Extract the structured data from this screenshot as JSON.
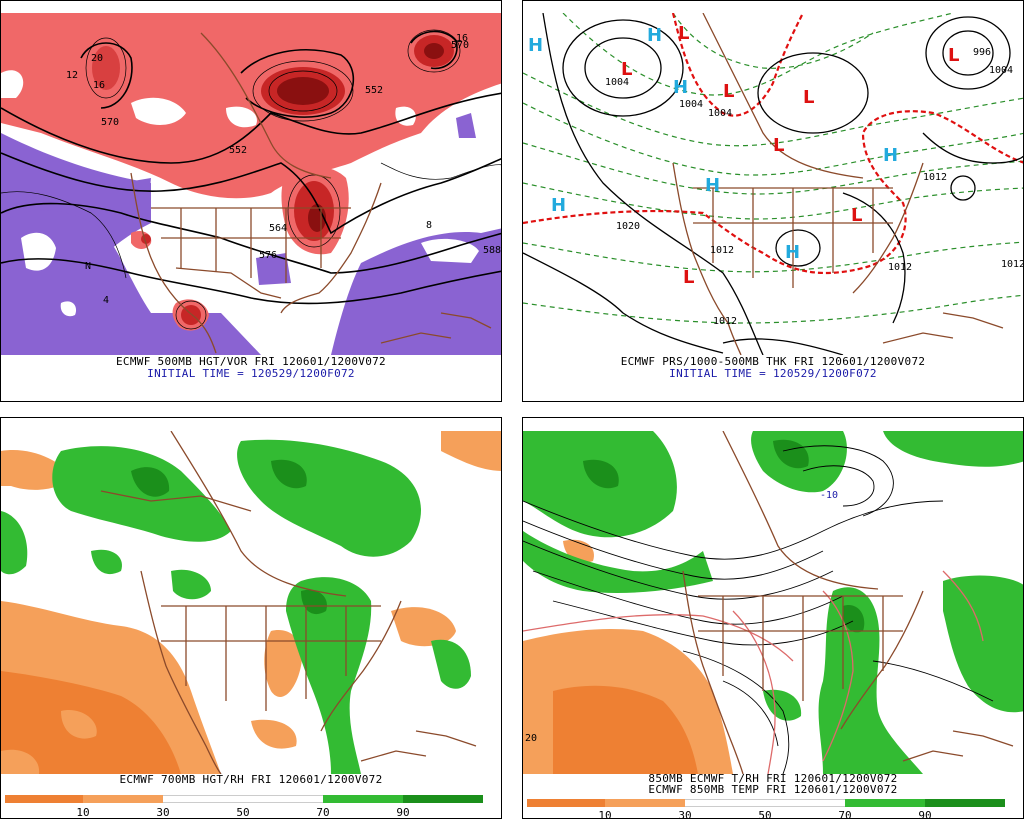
{
  "colors": {
    "vort_pos": "#f06868",
    "vort_pos_dark": "#c72626",
    "vort_neg": "#8a63d2",
    "rh_moist": "#33bb33",
    "rh_moist_dark": "#1b8f1b",
    "rh_dry": "#f5a05a",
    "rh_dry_dark": "#ee8033",
    "coast": "#8b4a2b",
    "thickness": "#2a8f2a",
    "thickness_540": "#e01010",
    "pressure_high": "#22aadd",
    "pressure_low": "#dd1111"
  },
  "panels": {
    "hgt_vor": {
      "caption": "ECMWF 500MB HGT/VOR FRI 120601/1200V072",
      "initial": "INITIAL TIME = 120529/1200F072",
      "labels": [
        "552",
        "564",
        "570",
        "576",
        "588",
        "12",
        "16",
        "20",
        "8",
        "4",
        "N",
        "552",
        "570",
        "16"
      ]
    },
    "prs_thk": {
      "caption": "ECMWF PRS/1000-500MB THK FRI 120601/1200V072",
      "initial": "INITIAL TIME = 120529/1200F072",
      "isobars": [
        "1004",
        "1004",
        "1004",
        "996",
        "1004",
        "1012",
        "1020",
        "1012",
        "1012",
        "1012",
        "1012"
      ],
      "highs": [
        "H",
        "H",
        "H",
        "H",
        "H",
        "H",
        "H"
      ],
      "lows": [
        "L",
        "L",
        "L",
        "L",
        "L",
        "L",
        "L",
        "L"
      ]
    },
    "hgt_rh": {
      "caption": "ECMWF 700MB HGT/RH FRI 120601/1200V072",
      "colorbar": [
        "10",
        "30",
        "50",
        "70",
        "90"
      ]
    },
    "temp_rh": {
      "caption1": "850MB ECMWF T/RH FRI 120601/1200V072",
      "caption2": "ECMWF 850MB TEMP FRI 120601/1200V072",
      "labels": [
        "-10",
        "20"
      ],
      "colorbar": [
        "10",
        "30",
        "50",
        "70",
        "90"
      ]
    }
  }
}
